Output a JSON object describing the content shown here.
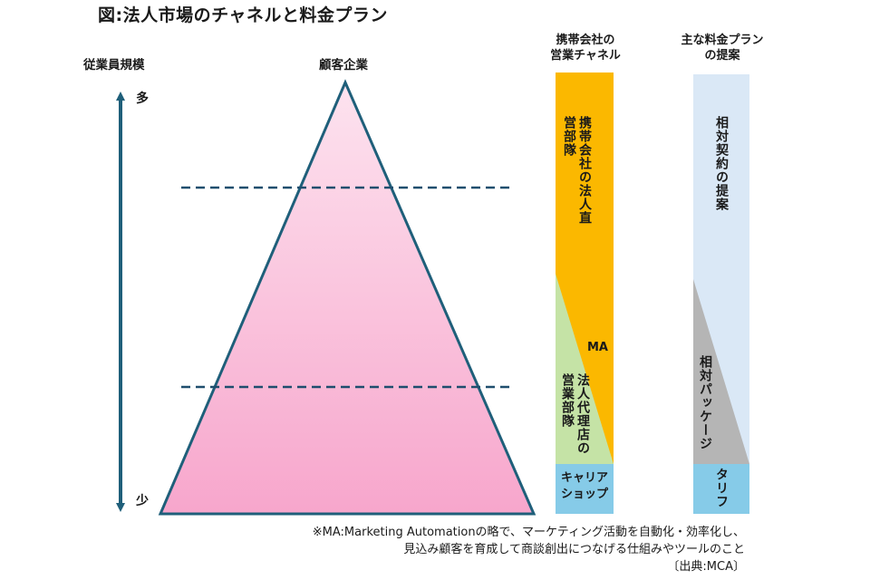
{
  "title": "図:法人市場のチャネルと料金プラン",
  "axis": {
    "label": "従業員規模",
    "top": "多",
    "bottom": "少"
  },
  "pyramid": {
    "label": "顧客企業"
  },
  "channel": {
    "header": "携帯会社の\n営業チャネル",
    "direct": "携帯会社の法人直営部隊",
    "ma": "MA",
    "agency": "法人代理店の営業部隊",
    "carrier_shop": "キャリア\nショップ"
  },
  "plan": {
    "header": "主な料金プラン\nの提案",
    "relative": "相対契約の提案",
    "package": "相対パッケージ",
    "tariff": "タリフ"
  },
  "footnote": {
    "line1": "※MA:Marketing Automationの略で、マーケティング活動を自動化・効率化し、",
    "line2": "見込み顧客を育成して商談創出につなげる仕組みやツールのこと",
    "source": "〔出典:MCA〕"
  },
  "colors": {
    "arrow": "#1f5f7a",
    "dashed": "#1f4e6e",
    "pyramid_top": "#fde3ef",
    "pyramid_bottom": "#f7a6cc",
    "orange": "#fbb800",
    "green": "#c5e3a6",
    "sky": "#86cbe8",
    "pale_blue": "#dae8f6",
    "gray": "#b5b5b5"
  }
}
